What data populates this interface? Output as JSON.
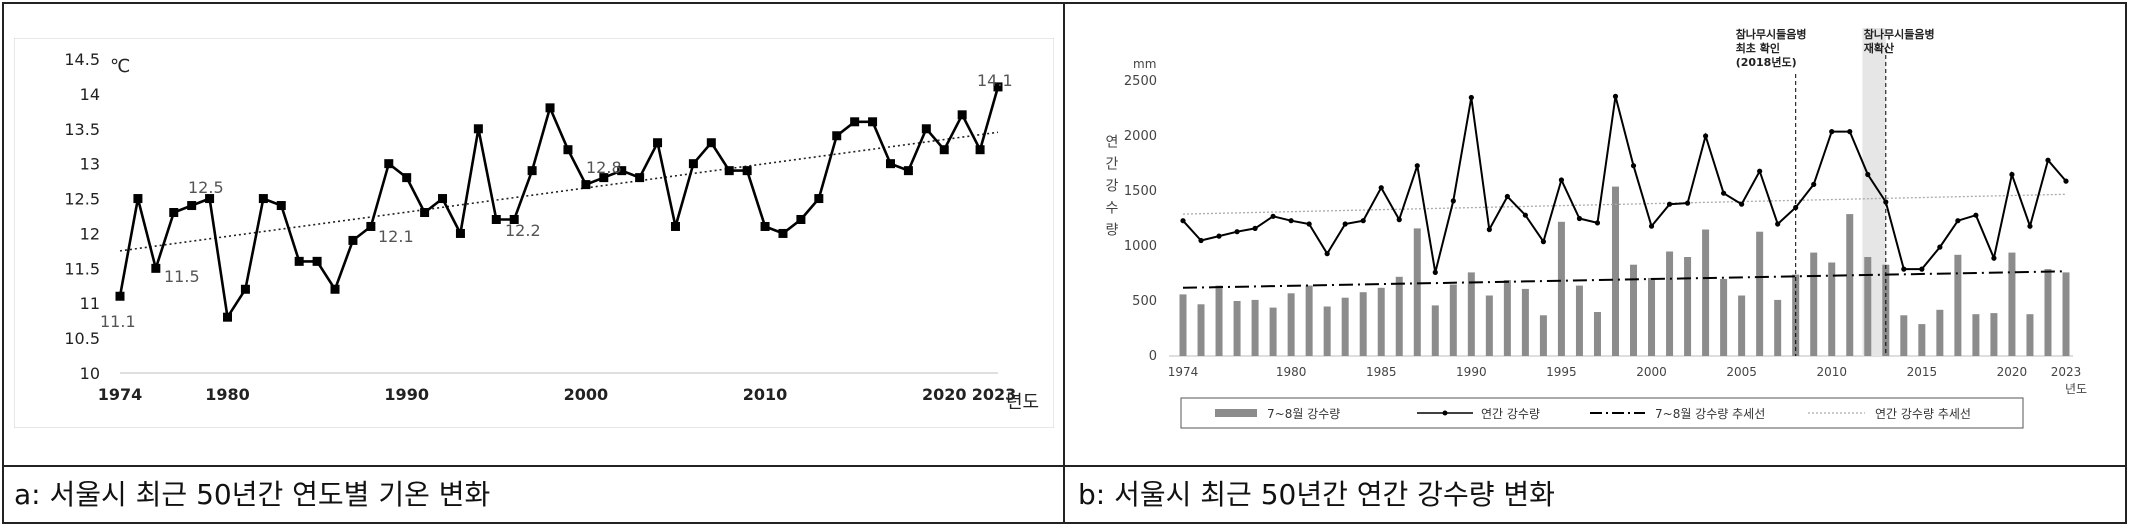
{
  "panels": {
    "a": {
      "caption": "a: 서울시 최근 50년간 연도별 기온 변화"
    },
    "b": {
      "caption": "b: 서울시 최근 50년간 연간 강수량 변화"
    }
  },
  "chart_data": [
    {
      "type": "line",
      "unit_label": "℃",
      "xlabel": "년도",
      "x_ticks": [
        "1974",
        "1980",
        "1990",
        "2000",
        "2010",
        "2020",
        "2023"
      ],
      "y_ticks": [
        "10",
        "10.5",
        "11",
        "11.5",
        "12",
        "12.5",
        "13",
        "13.5",
        "14",
        "14.5"
      ],
      "ylim": [
        10,
        14.5
      ],
      "grid": false,
      "series": [
        {
          "x": [
            1974,
            1975,
            1976,
            1977,
            1978,
            1979,
            1980,
            1981,
            1982,
            1983,
            1984,
            1985,
            1986,
            1987,
            1988,
            1989,
            1990,
            1991,
            1992,
            1993,
            1994,
            1995,
            1996,
            1997,
            1998,
            1999,
            2000,
            2001,
            2002,
            2003,
            2004,
            2005,
            2006,
            2007,
            2008,
            2009,
            2010,
            2011,
            2012,
            2013,
            2014,
            2015,
            2016,
            2017,
            2018,
            2019,
            2020,
            2021,
            2022,
            2023
          ],
          "values": [
            11.1,
            12.5,
            11.5,
            12.3,
            12.4,
            12.5,
            10.8,
            11.2,
            12.5,
            12.4,
            11.6,
            11.6,
            11.2,
            11.9,
            12.1,
            13.0,
            12.8,
            12.3,
            12.5,
            12.0,
            13.5,
            12.2,
            12.2,
            12.9,
            13.8,
            13.2,
            12.7,
            12.8,
            12.9,
            12.8,
            13.3,
            12.1,
            13.0,
            13.3,
            12.9,
            12.9,
            12.1,
            12.0,
            12.2,
            12.5,
            13.4,
            13.6,
            13.6,
            13.0,
            12.9,
            13.5,
            13.2,
            13.7,
            13.2,
            14.1
          ]
        }
      ],
      "trendline": {
        "style": "dotted",
        "start": [
          1974,
          11.75
        ],
        "end": [
          2023,
          13.45
        ]
      },
      "annotations": [
        "11.1",
        "12.5",
        "11.5",
        "12.1",
        "12.2",
        "12.8",
        "14.1"
      ]
    },
    {
      "type": "bar",
      "unit_label": "mm",
      "ylabel": "연간강수량",
      "xlabel": "년도",
      "x_ticks": [
        "1974",
        "1980",
        "1985",
        "1990",
        "1995",
        "2000",
        "2005",
        "2010",
        "2015",
        "2020",
        "2023"
      ],
      "y_ticks": [
        "0",
        "500",
        "1000",
        "1500",
        "2000",
        "2500"
      ],
      "ylim": [
        0,
        2500
      ],
      "x": [
        1974,
        1975,
        1976,
        1977,
        1978,
        1979,
        1980,
        1981,
        1982,
        1983,
        1984,
        1985,
        1986,
        1987,
        1988,
        1989,
        1990,
        1991,
        1992,
        1993,
        1994,
        1995,
        1996,
        1997,
        1998,
        1999,
        2000,
        2001,
        2002,
        2003,
        2004,
        2005,
        2006,
        2007,
        2008,
        2009,
        2010,
        2011,
        2012,
        2013,
        2014,
        2015,
        2016,
        2017,
        2018,
        2019,
        2020,
        2021,
        2022,
        2023
      ],
      "series": [
        {
          "name": "7~8월 강수량",
          "type": "bar",
          "color": "#8c8c8c",
          "values": [
            560,
            470,
            640,
            500,
            510,
            440,
            570,
            640,
            450,
            530,
            580,
            620,
            720,
            1160,
            460,
            650,
            760,
            550,
            690,
            610,
            370,
            1220,
            640,
            400,
            1540,
            830,
            710,
            950,
            900,
            1150,
            700,
            550,
            1130,
            510,
            740,
            940,
            850,
            1290,
            900,
            830,
            370,
            290,
            420,
            920,
            380,
            390,
            940,
            380,
            790,
            760
          ]
        },
        {
          "name": "연간 강수량",
          "type": "line",
          "color": "#000000",
          "values": [
            1230,
            1050,
            1090,
            1130,
            1160,
            1270,
            1230,
            1200,
            930,
            1200,
            1230,
            1530,
            1240,
            1730,
            760,
            1410,
            2350,
            1150,
            1450,
            1280,
            1040,
            1600,
            1250,
            1210,
            2360,
            1730,
            1180,
            1380,
            1390,
            2000,
            1480,
            1380,
            1680,
            1200,
            1350,
            1560,
            2040,
            2040,
            1650,
            1400,
            790,
            790,
            990,
            1230,
            1280,
            890,
            1650,
            1180,
            1780,
            1590
          ]
        }
      ],
      "trend_7_8": {
        "style": "dash-dot",
        "start": [
          1974,
          620
        ],
        "end": [
          2023,
          770
        ]
      },
      "trend_annual": {
        "style": "dotted",
        "start": [
          1974,
          1290
        ],
        "end": [
          2023,
          1470
        ]
      },
      "annotations": [
        {
          "x": 2008,
          "lines": [
            "참나무시들음병",
            "최초 확인",
            "(2018년도)"
          ]
        },
        {
          "x": 2012,
          "lines": [
            "참나무시들음병",
            "재확산"
          ]
        }
      ],
      "legend": {
        "placement": "bottom",
        "items": [
          "7~8월 강수량",
          "연간 강수량",
          "7~8월 강수량 추세선",
          "연간 강수량 추세선"
        ]
      }
    }
  ]
}
